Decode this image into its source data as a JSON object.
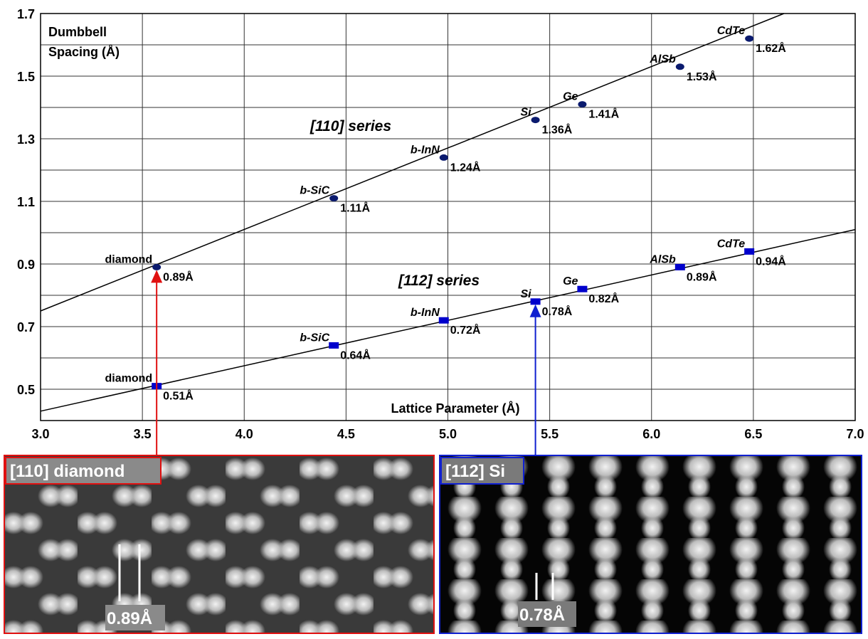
{
  "chart_data": {
    "type": "scatter",
    "ylabel": [
      "Dumbbell",
      "Spacing (Å)"
    ],
    "xlabel": "Lattice Parameter (Å)",
    "xlim": [
      3.0,
      7.0
    ],
    "xticks": [
      {
        "value": 3,
        "label": "3.0"
      },
      3.5,
      {
        "value": 4,
        "label": "4.0"
      },
      4.5,
      {
        "value": 5,
        "label": "5.0"
      },
      5.5,
      {
        "value": 6,
        "label": "6.0"
      },
      6.5,
      {
        "value": 7,
        "label": "7.0"
      }
    ],
    "ylim": [
      0.4,
      1.7
    ],
    "yticks": [
      0.5,
      0.7,
      0.9,
      1.1,
      1.3,
      1.5,
      1.7
    ],
    "ygrid": [
      0.4,
      0.5,
      0.6,
      0.7,
      0.8,
      0.9,
      1.0,
      1.1,
      1.2,
      1.3,
      1.4,
      1.5,
      1.6,
      1.7
    ],
    "grid": true,
    "series": [
      {
        "name": "[110] series",
        "color": "#0a1a6e",
        "marker": "ellipse",
        "x": [
          3.57,
          4.44,
          4.98,
          5.43,
          5.66,
          6.14,
          6.48
        ],
        "values": [
          0.89,
          1.11,
          1.24,
          1.36,
          1.41,
          1.53,
          1.62
        ],
        "value_labels": [
          "0.89Å",
          "1.11Å",
          "1.24Å",
          "1.36Å",
          "1.41Å",
          "1.53Å",
          "1.62Å"
        ],
        "point_labels": [
          "diamond",
          "b-SiC",
          "b-InN",
          "Si",
          "Ge",
          "AlSb",
          "CdTe"
        ],
        "fit": {
          "x": [
            3.0,
            6.65
          ],
          "values": [
            0.75,
            1.7
          ]
        }
      },
      {
        "name": "[112] series",
        "color": "#0000cc",
        "marker": "rect",
        "x": [
          3.57,
          4.44,
          4.98,
          5.43,
          5.66,
          6.14,
          6.48
        ],
        "values": [
          0.51,
          0.64,
          0.72,
          0.78,
          0.82,
          0.89,
          0.94
        ],
        "value_labels": [
          "0.51Å",
          "0.64Å",
          "0.72Å",
          "0.78Å",
          "0.82Å",
          "0.89Å",
          "0.94Å"
        ],
        "point_labels": [
          "diamond",
          "b-SiC",
          "b-InN",
          "Si",
          "Ge",
          "AlSb",
          "CdTe"
        ],
        "fit": {
          "x": [
            3.0,
            7.0
          ],
          "values": [
            0.43,
            1.01
          ]
        }
      }
    ]
  },
  "images": [
    {
      "label": "[110] diamond",
      "scale_label": "0.89Å"
    },
    {
      "label": "[112] Si",
      "scale_label": "0.78Å"
    }
  ]
}
